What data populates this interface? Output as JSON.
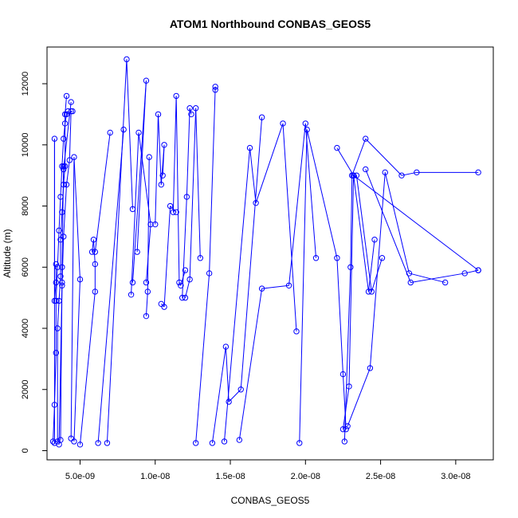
{
  "chart_data": {
    "type": "line",
    "title": "ATOM1 Northbound CONBAS_GEOS5",
    "xlabel": "CONBAS_GEOS5",
    "ylabel": "Altitude (m)",
    "xlim": [
      2.8e-09,
      3.25e-08
    ],
    "ylim": [
      -300,
      13200
    ],
    "x_ticks": [
      5e-09,
      1e-08,
      1.5e-08,
      2e-08,
      2.5e-08,
      3e-08
    ],
    "x_tick_labels": [
      "5.0e-09",
      "1.0e-08",
      "1.5e-08",
      "2.0e-08",
      "2.5e-08",
      "3.0e-08"
    ],
    "y_ticks": [
      0,
      2000,
      4000,
      6000,
      8000,
      10000,
      12000
    ],
    "y_tick_labels": [
      "0",
      "2000",
      "4000",
      "6000",
      "8000",
      "10000",
      "12000"
    ],
    "marker": "open-circle",
    "color": "#0000ff",
    "grid": false,
    "legend": "none",
    "series": [
      {
        "x": [
          3.2e-09,
          3.3e-09,
          3.4e-09,
          3.4e-09,
          3.5e-09,
          3.6e-09,
          3.7e-09,
          3.8e-09,
          3.9e-09,
          4e-09,
          4.1e-09,
          4.2e-09
        ],
        "y": [
          300,
          1500,
          3200,
          4900,
          6000,
          7200,
          8300,
          9300,
          10200,
          10700,
          11000,
          11100
        ]
      },
      {
        "x": [
          3.3e-09,
          3.3e-09,
          3.3e-09,
          3.4e-09,
          3.4e-09
        ],
        "y": [
          250,
          10200,
          4900,
          5500,
          6100
        ]
      },
      {
        "x": [
          3.5e-09,
          3.5e-09,
          3.6e-09,
          3.7e-09,
          3.7e-09,
          3.8e-09,
          3.9e-09,
          4e-09,
          4e-09,
          4.1e-09
        ],
        "y": [
          300,
          4000,
          4900,
          5700,
          6900,
          7800,
          8700,
          9300,
          11000,
          11600
        ]
      },
      {
        "x": [
          3.6e-09,
          3.8e-09,
          3.9e-09,
          4.1e-09,
          4.3e-09,
          4.4e-09,
          4.5e-09
        ],
        "y": [
          200,
          5400,
          7000,
          8700,
          9500,
          11100,
          11100
        ]
      },
      {
        "x": [
          3.7e-09,
          3.8e-09,
          3.8e-09,
          3.9e-09,
          3.9e-09,
          4.4e-09
        ],
        "y": [
          350,
          5500,
          6000,
          9300,
          9200,
          11400
        ]
      },
      {
        "x": [
          4.4e-09,
          4.6e-09,
          5e-09,
          4.6e-09
        ],
        "y": [
          400,
          9600,
          5600,
          300
        ]
      },
      {
        "x": [
          5e-09,
          6e-09,
          6e-09,
          5.9e-09,
          5.8e-09,
          6e-09,
          7e-09
        ],
        "y": [
          200,
          5200,
          6100,
          6900,
          6500,
          6500,
          10400
        ]
      },
      {
        "x": [
          6.2e-09,
          7.9e-09
        ],
        "y": [
          250,
          10500
        ]
      },
      {
        "x": [
          6.8e-09,
          8.1e-09,
          8.5e-09
        ],
        "y": [
          250,
          12800,
          7900
        ]
      },
      {
        "x": [
          8.4e-09,
          8.9e-09,
          9.7e-09,
          9.4e-09
        ],
        "y": [
          5100,
          10400,
          7400,
          5500
        ]
      },
      {
        "x": [
          8.5e-09,
          9.4e-09,
          8.8e-09
        ],
        "y": [
          5500,
          12100,
          6500
        ]
      },
      {
        "x": [
          9.4e-09,
          9.5e-09,
          9.6e-09
        ],
        "y": [
          4400,
          5200,
          9600
        ]
      },
      {
        "x": [
          1e-08,
          1.02e-08,
          1.04e-08,
          1.06e-08,
          1.05e-08
        ],
        "y": [
          7400,
          11000,
          8700,
          10000,
          9000
        ]
      },
      {
        "x": [
          1.04e-08,
          1.06e-08,
          1.1e-08,
          1.14e-08
        ],
        "y": [
          4800,
          4700,
          8000,
          7800
        ]
      },
      {
        "x": [
          1.12e-08,
          1.14e-08,
          1.16e-08,
          1.17e-08,
          1.2e-08
        ],
        "y": [
          7800,
          11600,
          5500,
          5400,
          5900
        ]
      },
      {
        "x": [
          1.18e-08,
          1.21e-08,
          1.23e-08,
          1.24e-08
        ],
        "y": [
          5000,
          8300,
          11200,
          11000
        ]
      },
      {
        "x": [
          1.2e-08,
          1.23e-08,
          1.27e-08,
          1.3e-08
        ],
        "y": [
          5000,
          5600,
          11200,
          6300
        ]
      },
      {
        "x": [
          1.27e-08,
          1.36e-08,
          1.4e-08,
          1.4e-08
        ],
        "y": [
          250,
          5800,
          11900,
          11800
        ]
      },
      {
        "x": [
          1.38e-08,
          1.47e-08,
          1.49e-08,
          1.57e-08,
          1.71e-08
        ],
        "y": [
          250,
          3400,
          1600,
          2000,
          10900
        ]
      },
      {
        "x": [
          1.46e-08,
          1.63e-08,
          1.67e-08,
          1.85e-08,
          1.94e-08
        ],
        "y": [
          300,
          9900,
          8100,
          10700,
          3900
        ]
      },
      {
        "x": [
          1.56e-08,
          1.71e-08,
          1.89e-08,
          2e-08,
          2.07e-08
        ],
        "y": [
          350,
          5300,
          5400,
          10700,
          6300
        ]
      },
      {
        "x": [
          1.96e-08,
          2.01e-08,
          2.21e-08,
          2.25e-08,
          2.27e-08
        ],
        "y": [
          250,
          10500,
          6300,
          2500,
          700
        ]
      },
      {
        "x": [
          2.25e-08,
          2.29e-08,
          2.32e-08,
          2.42e-08,
          2.46e-08
        ],
        "y": [
          700,
          2100,
          9000,
          5200,
          6900
        ]
      },
      {
        "x": [
          2.26e-08,
          2.3e-08,
          2.31e-08,
          2.34e-08,
          2.44e-08,
          2.51e-08
        ],
        "y": [
          300,
          6000,
          9000,
          9000,
          5200,
          6300
        ]
      },
      {
        "x": [
          2.28e-08,
          2.43e-08,
          2.53e-08,
          2.69e-08,
          2.93e-08
        ],
        "y": [
          800,
          2700,
          9100,
          5800,
          5500
        ]
      },
      {
        "x": [
          2.31e-08,
          2.4e-08,
          2.64e-08,
          2.74e-08,
          3.15e-08
        ],
        "y": [
          9000,
          10200,
          9000,
          9100,
          9100
        ]
      },
      {
        "x": [
          2.4e-08,
          2.7e-08,
          3.06e-08,
          3.15e-08
        ],
        "y": [
          9200,
          5500,
          5800,
          5900
        ]
      },
      {
        "x": [
          2.21e-08,
          2.32e-08,
          3.15e-08
        ],
        "y": [
          9900,
          9000,
          5900
        ]
      }
    ]
  }
}
